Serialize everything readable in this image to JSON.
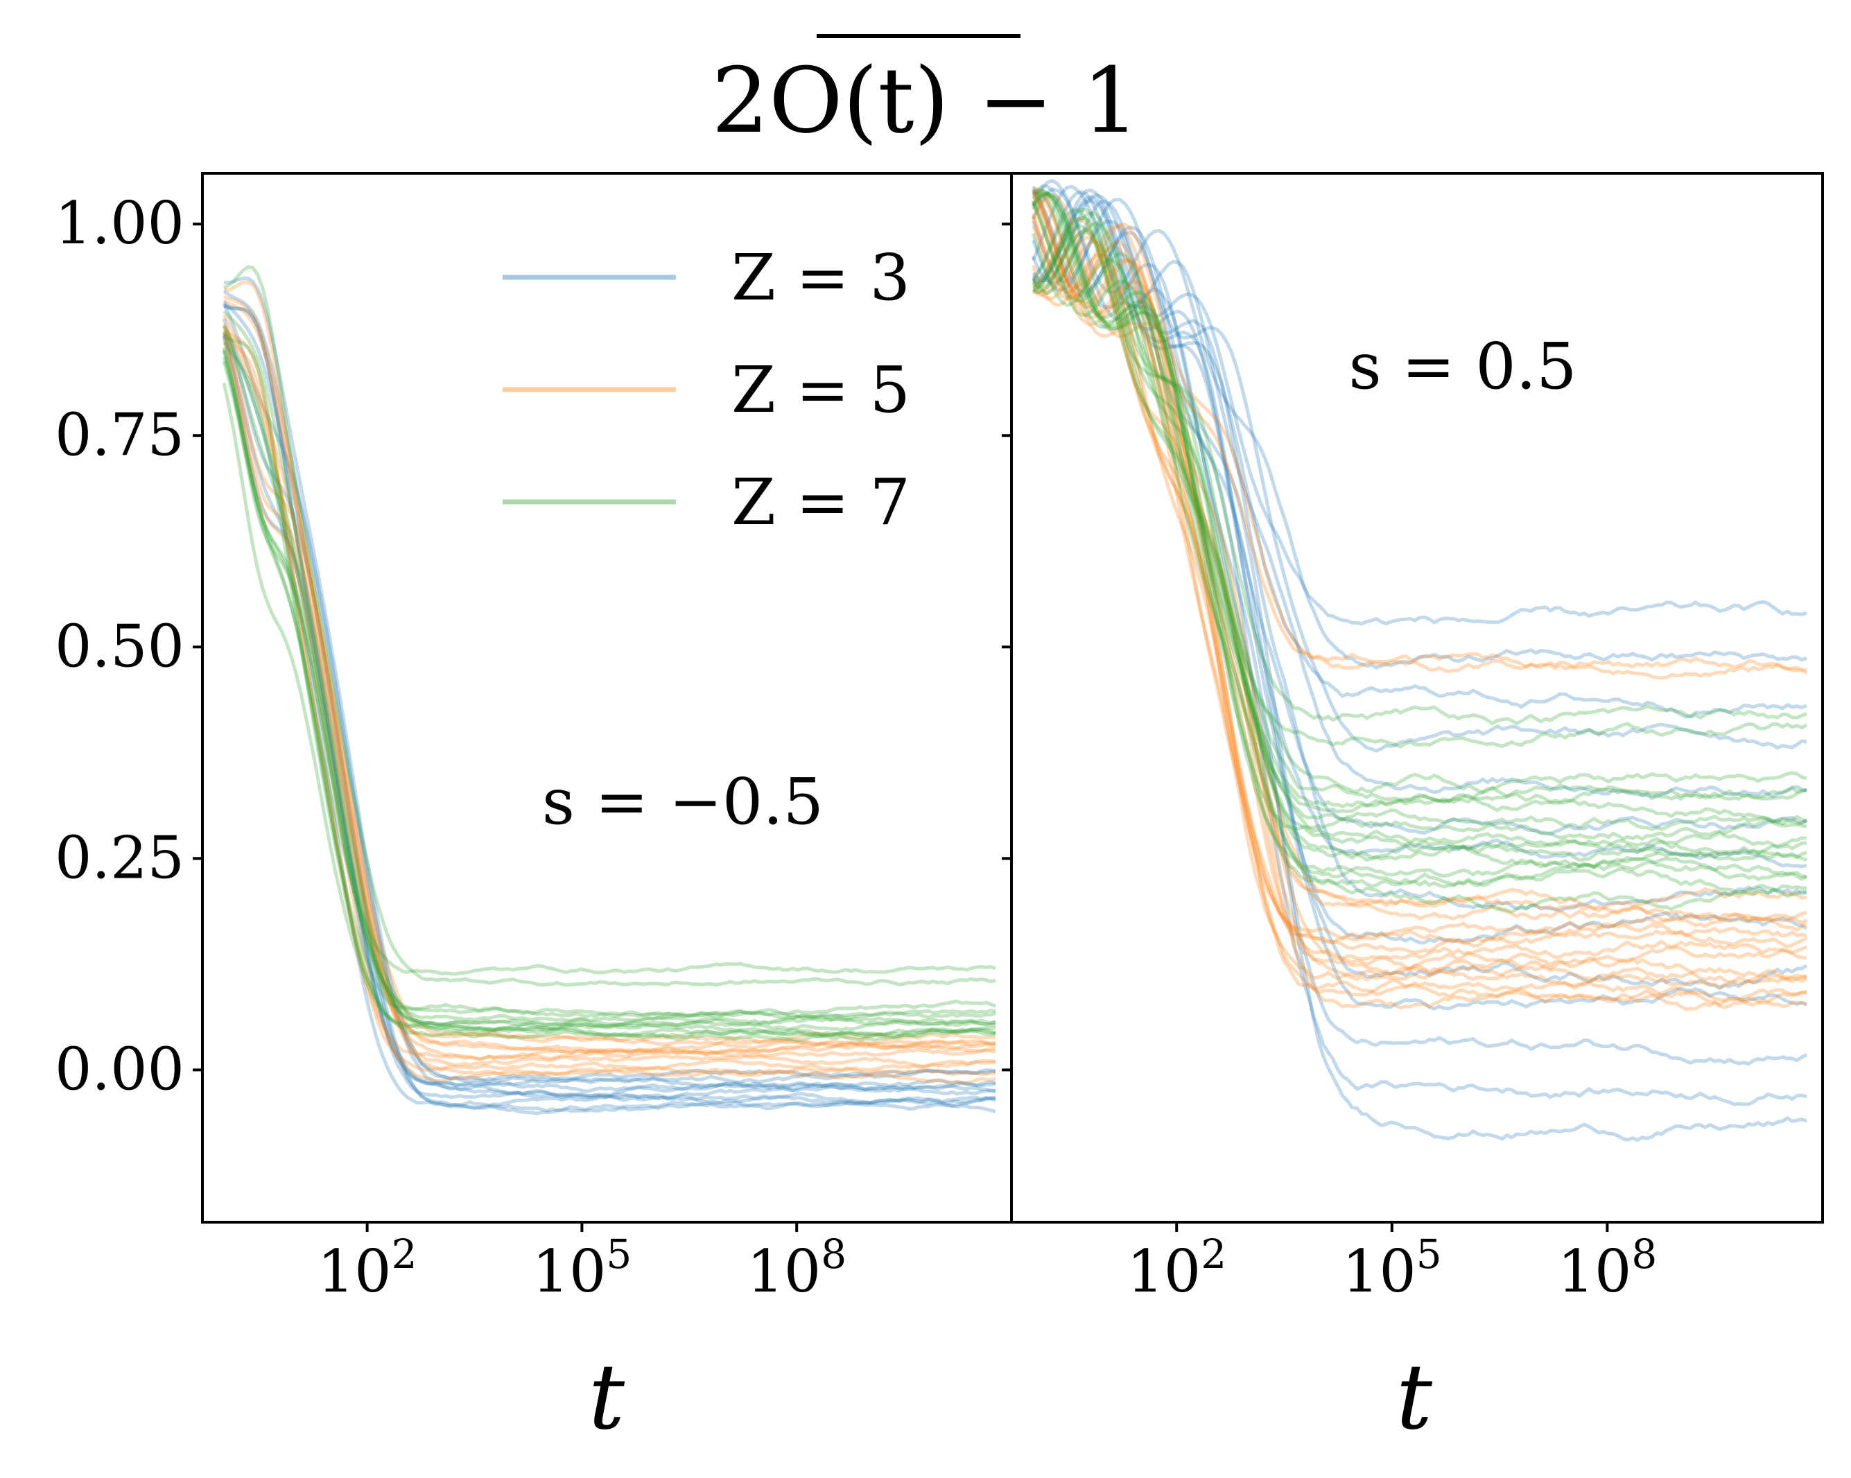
{
  "chart_data": {
    "title": "2O(t) − 1",
    "type": "line",
    "x_scale": "log",
    "y_tick_labels": [
      "0.00",
      "0.25",
      "0.50",
      "0.75",
      "1.00"
    ],
    "legend": {
      "placement": "upper-right of left panel",
      "entries": [
        {
          "label": "Z = 3",
          "color": "#1f77b4"
        },
        {
          "label": "Z = 5",
          "color": "#ff7f0e"
        },
        {
          "label": "Z = 7",
          "color": "#2ca02c"
        }
      ]
    },
    "panels": [
      {
        "annotation": "s = −0.5",
        "xlabel": "t",
        "xlim": [
          0.5,
          100000000000.0
        ],
        "ylim": [
          -0.18,
          1.06
        ],
        "x_ticks": [
          {
            "value": 100,
            "base": "10",
            "exp": "2"
          },
          {
            "value": 100000,
            "base": "10",
            "exp": "5"
          },
          {
            "value": 100000000,
            "base": "10",
            "exp": "8"
          }
        ],
        "series": [
          {
            "group": "Z = 3",
            "color": "#1f77b4",
            "start": 1.0,
            "plateau_min": -0.045,
            "plateau_max": -0.005,
            "relax_time": 40
          },
          {
            "group": "Z = 5",
            "color": "#ff7f0e",
            "start": 1.0,
            "plateau_min": -0.005,
            "plateau_max": 0.04,
            "relax_time": 30
          },
          {
            "group": "Z = 7",
            "color": "#2ca02c",
            "start": 1.0,
            "plateau_min": 0.04,
            "plateau_max": 0.07,
            "relax_time": 25
          },
          {
            "group": "Z = 7",
            "color": "#2ca02c",
            "start": 1.0,
            "plateau_min": 0.105,
            "plateau_max": 0.12,
            "relax_time": 25
          }
        ]
      },
      {
        "annotation": "s = 0.5",
        "xlabel": "t",
        "xlim": [
          0.5,
          100000000000.0
        ],
        "ylim": [
          -0.18,
          1.06
        ],
        "x_ticks": [
          {
            "value": 100,
            "base": "10",
            "exp": "2"
          },
          {
            "value": 100000,
            "base": "10",
            "exp": "5"
          },
          {
            "value": 100000000,
            "base": "10",
            "exp": "8"
          }
        ],
        "series": [
          {
            "group": "Z = 3",
            "color": "#1f77b4",
            "start": 1.0,
            "plateau_min": -0.065,
            "plateau_max": 0.53,
            "relax_time": 2000
          },
          {
            "group": "Z = 5",
            "color": "#ff7f0e",
            "start": 1.0,
            "plateau_min": 0.075,
            "plateau_max": 0.2,
            "relax_time": 600
          },
          {
            "group": "Z = 5",
            "color": "#ff7f0e",
            "start": 1.0,
            "plateau_min": 0.48,
            "plateau_max": 0.49,
            "relax_time": 600
          },
          {
            "group": "Z = 7",
            "color": "#2ca02c",
            "start": 1.0,
            "plateau_min": 0.21,
            "plateau_max": 0.34,
            "relax_time": 400
          },
          {
            "group": "Z = 7",
            "color": "#2ca02c",
            "start": 1.0,
            "plateau_min": 0.4,
            "plateau_max": 0.42,
            "relax_time": 400
          }
        ]
      }
    ]
  }
}
